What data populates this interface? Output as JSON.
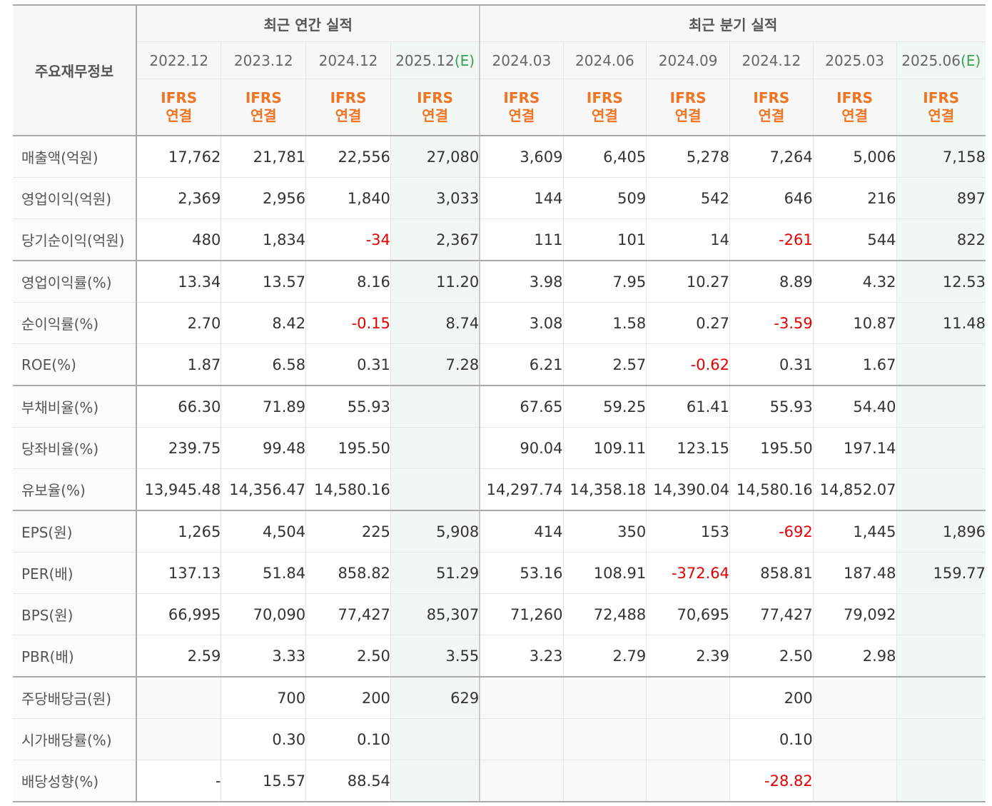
{
  "header": {
    "corner_label": "주요재무정보",
    "annual_title": "최근 연간 실적",
    "quarter_title": "최근 분기 실적",
    "annual_periods": [
      "2022.12",
      "2023.12",
      "2024.12",
      "2025.12"
    ],
    "annual_estimate_tag": "(E)",
    "quarter_periods": [
      "2024.03",
      "2024.06",
      "2024.09",
      "2024.12",
      "2025.03",
      "2025.06"
    ],
    "quarter_estimate_tag": "(E)",
    "ifrs_line1": "IFRS",
    "ifrs_line2": "연결"
  },
  "colors": {
    "ifrs": "#f07422",
    "negative": "#e60000",
    "estimate_text": "#39a057",
    "estimate_bg": "#f1f8f3"
  },
  "rows": [
    {
      "label": "매출액(억원)",
      "values": [
        "17,762",
        "21,781",
        "22,556",
        "27,080",
        "3,609",
        "6,405",
        "5,278",
        "7,264",
        "5,006",
        "7,158"
      ]
    },
    {
      "label": "영업이익(억원)",
      "values": [
        "2,369",
        "2,956",
        "1,840",
        "3,033",
        "144",
        "509",
        "542",
        "646",
        "216",
        "897"
      ]
    },
    {
      "label": "당기순이익(억원)",
      "values": [
        "480",
        "1,834",
        "-34",
        "2,367",
        "111",
        "101",
        "14",
        "-261",
        "544",
        "822"
      ]
    },
    {
      "label": "영업이익률(%)",
      "values": [
        "13.34",
        "13.57",
        "8.16",
        "11.20",
        "3.98",
        "7.95",
        "10.27",
        "8.89",
        "4.32",
        "12.53"
      ]
    },
    {
      "label": "순이익률(%)",
      "values": [
        "2.70",
        "8.42",
        "-0.15",
        "8.74",
        "3.08",
        "1.58",
        "0.27",
        "-3.59",
        "10.87",
        "11.48"
      ]
    },
    {
      "label": "ROE(%)",
      "values": [
        "1.87",
        "6.58",
        "0.31",
        "7.28",
        "6.21",
        "2.57",
        "-0.62",
        "0.31",
        "1.67",
        ""
      ]
    },
    {
      "label": "부채비율(%)",
      "values": [
        "66.30",
        "71.89",
        "55.93",
        "",
        "67.65",
        "59.25",
        "61.41",
        "55.93",
        "54.40",
        ""
      ]
    },
    {
      "label": "당좌비율(%)",
      "values": [
        "239.75",
        "99.48",
        "195.50",
        "",
        "90.04",
        "109.11",
        "123.15",
        "195.50",
        "197.14",
        ""
      ]
    },
    {
      "label": "유보율(%)",
      "values": [
        "13,945.48",
        "14,356.47",
        "14,580.16",
        "",
        "14,297.74",
        "14,358.18",
        "14,390.04",
        "14,580.16",
        "14,852.07",
        ""
      ]
    },
    {
      "label": "EPS(원)",
      "values": [
        "1,265",
        "4,504",
        "225",
        "5,908",
        "414",
        "350",
        "153",
        "-692",
        "1,445",
        "1,896"
      ]
    },
    {
      "label": "PER(배)",
      "values": [
        "137.13",
        "51.84",
        "858.82",
        "51.29",
        "53.16",
        "108.91",
        "-372.64",
        "858.81",
        "187.48",
        "159.77"
      ]
    },
    {
      "label": "BPS(원)",
      "values": [
        "66,995",
        "70,090",
        "77,427",
        "85,307",
        "71,260",
        "72,488",
        "70,695",
        "77,427",
        "79,092",
        ""
      ]
    },
    {
      "label": "PBR(배)",
      "values": [
        "2.59",
        "3.33",
        "2.50",
        "3.55",
        "3.23",
        "2.79",
        "2.39",
        "2.50",
        "2.98",
        ""
      ]
    },
    {
      "label": "주당배당금(원)",
      "values": [
        "",
        "700",
        "200",
        "629",
        "",
        "",
        "",
        "200",
        "",
        ""
      ]
    },
    {
      "label": "시가배당률(%)",
      "values": [
        "",
        "0.30",
        "0.10",
        "",
        "",
        "",
        "",
        "0.10",
        "",
        ""
      ]
    },
    {
      "label": "배당성향(%)",
      "values": [
        "-",
        "15.57",
        "88.54",
        "",
        "",
        "",
        "",
        "-28.82",
        "",
        ""
      ]
    }
  ]
}
